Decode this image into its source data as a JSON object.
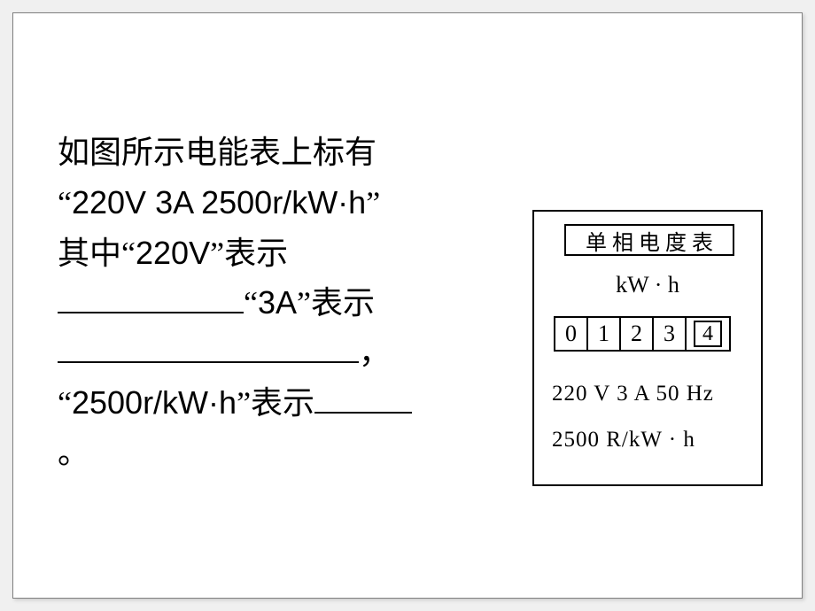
{
  "slide": {
    "text": {
      "line1a": "如图所示电能表上标有",
      "line2_quote_open": "“",
      "line2_spec": "220V  3A   2500r/kW·h",
      "line2_quote_close": "”",
      "line3a": "其中",
      "line3_quote_open": "“",
      "line3_val": "220V",
      "line3_quote_close": "”",
      "line3b": "表示",
      "line4_quote_open": "“",
      "line4_val": "3A",
      "line4_quote_close": "”",
      "line4b": "表示",
      "line5_comma": "，",
      "line6_quote_open": "“",
      "line6_val": "2500r/kW·h",
      "line6_quote_close": "”",
      "line6b": "表示",
      "line7_period": "。"
    }
  },
  "meter": {
    "title": "单相电度表",
    "unit": "kW · h",
    "digits": [
      "0",
      "1",
      "2",
      "3"
    ],
    "last_digit": "4",
    "spec_line1": "220 V 3 A 50 Hz",
    "spec_line2": "2500 R/kW · h",
    "border_color": "#000000",
    "background_color": "#ffffff",
    "font_color": "#000000"
  },
  "colors": {
    "page_bg": "#f0f0f0",
    "slide_bg": "#ffffff",
    "text": "#000000"
  }
}
